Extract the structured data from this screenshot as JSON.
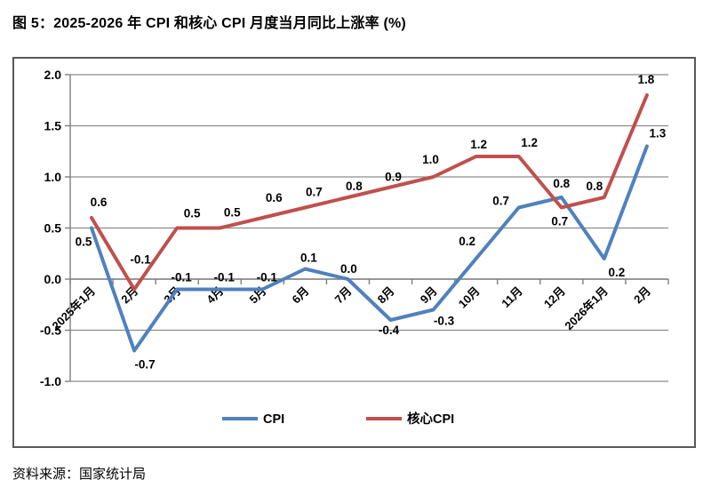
{
  "title": "图 5：2025-2026 年 CPI 和核心 CPI 月度当月同比上涨率 (%)",
  "source": "资料来源：国家统计局",
  "chart_data": {
    "type": "line",
    "title": "图 5：2025-2026 年 CPI 和核心 CPI 月度当月同比上涨率 (%)",
    "categories": [
      "2025年1月",
      "2月",
      "3月",
      "4月",
      "5月",
      "6月",
      "7月",
      "8月",
      "9月",
      "10月",
      "11月",
      "12月",
      "2026年1月",
      "2月"
    ],
    "series": [
      {
        "name": "CPI",
        "color": "#4F81BD",
        "values": [
          0.5,
          -0.7,
          -0.1,
          -0.1,
          -0.1,
          0.1,
          0.0,
          -0.4,
          -0.3,
          0.2,
          0.7,
          0.8,
          0.2,
          1.3
        ]
      },
      {
        "name": "核心CPI",
        "color": "#C0504D",
        "values": [
          0.6,
          -0.1,
          0.5,
          0.5,
          0.6,
          0.7,
          0.8,
          0.9,
          1.0,
          1.2,
          1.2,
          0.7,
          0.8,
          1.8
        ]
      }
    ],
    "ylim": [
      -1.0,
      2.0
    ],
    "yticks": [
      "2.0",
      "1.5",
      "1.0",
      "0.5",
      "0.0",
      "-0.5",
      "-1.0"
    ],
    "ytick_values": [
      2.0,
      1.5,
      1.0,
      0.5,
      0.0,
      -0.5,
      -1.0
    ],
    "xlabel": "",
    "ylabel": "",
    "grid": true,
    "data_labels": true,
    "legend_position": "bottom",
    "colors": {
      "grid": "#8c8c8c",
      "axis": "#7f7f7f",
      "text": "#000000",
      "frame": "#595959"
    }
  }
}
